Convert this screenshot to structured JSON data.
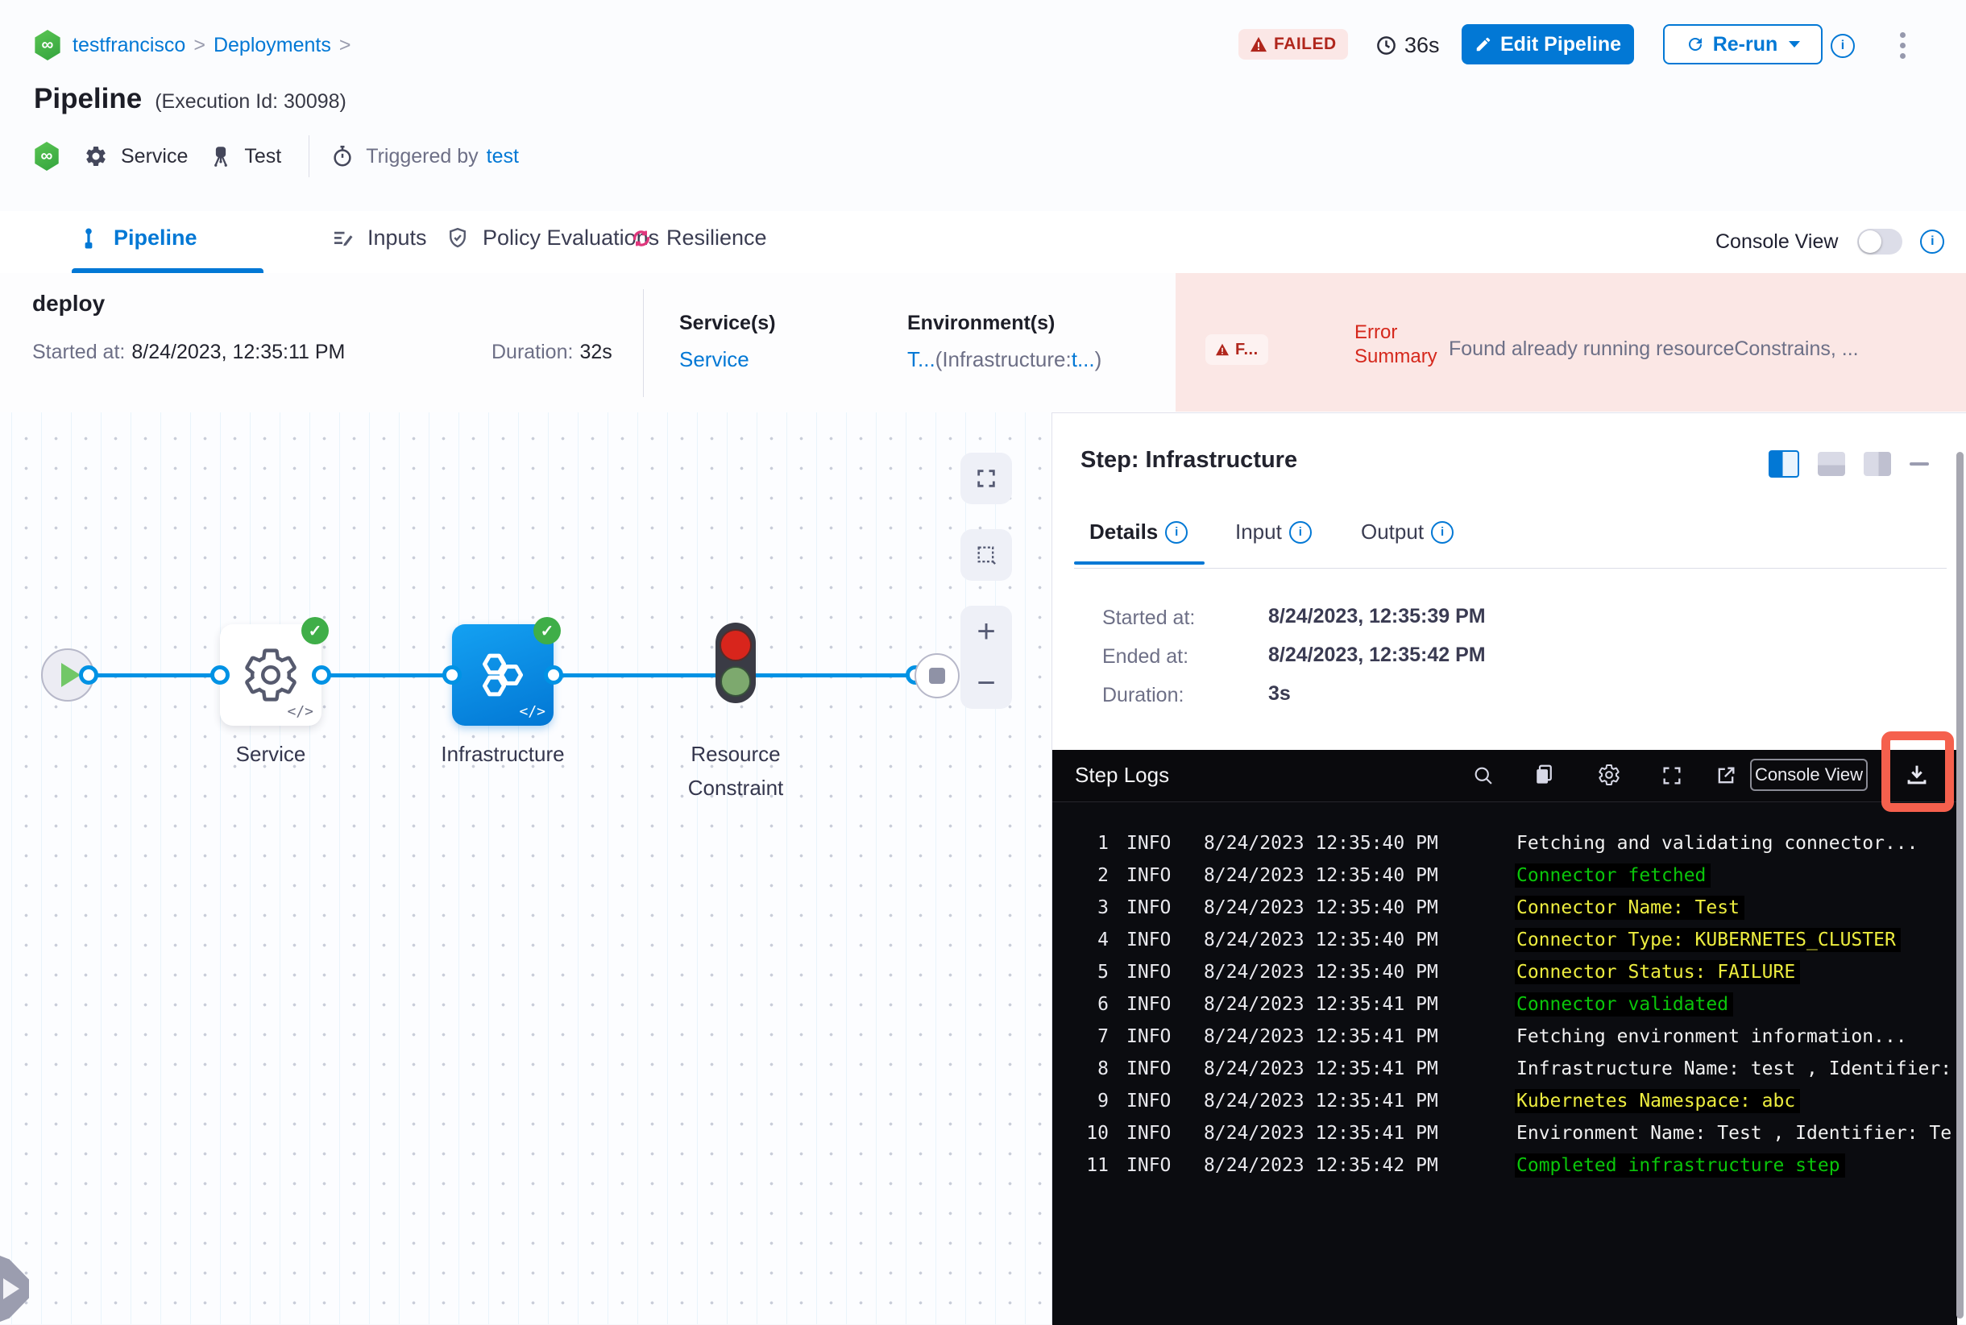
{
  "colors": {
    "accent": "#0278d5",
    "error_red": "#d5281c",
    "failed_red": "#b0261c",
    "log_green": "#0ac50a",
    "log_yellow": "#eded3f",
    "annotation": "#f5604d"
  },
  "breadcrumb": {
    "project": "testfrancisco",
    "section": "Deployments",
    "sep": ">"
  },
  "header": {
    "title": "Pipeline",
    "execution_id": "(Execution Id: 30098)",
    "status": "FAILED",
    "elapsed": "36s",
    "edit_button": "Edit Pipeline",
    "rerun_button": "Re-run",
    "service_label": "Service",
    "environment_label": "Test",
    "triggered_by_label": "Triggered by",
    "triggered_by_value": "test",
    "logo_glyph": "∞"
  },
  "tabs": {
    "pipeline": "Pipeline",
    "inputs": "Inputs",
    "policy": "Policy Evaluations",
    "resilience": "Resilience",
    "console_view_label": "Console View"
  },
  "stage": {
    "name": "deploy",
    "started_label": "Started at:",
    "started_value": "8/24/2023, 12:35:11 PM",
    "duration_label": "Duration:",
    "duration_value": "32s",
    "services_label": "Service(s)",
    "services_value": "Service",
    "environments_label": "Environment(s)",
    "env_link1": "T...",
    "env_mid": "(Infrastructure:",
    "env_link2": "t...",
    "env_close": ")",
    "failed_short": "F...",
    "error_label": "Error Summary",
    "error_text": "Found already running resourceConstrains, ..."
  },
  "graph": {
    "node_service": "Service",
    "node_infrastructure": "Infrastructure",
    "node_resource_line1": "Resource",
    "node_resource_line2": "Constraint",
    "code_glyph": "</>",
    "check_glyph": "✓"
  },
  "step_panel": {
    "title": "Step: Infrastructure",
    "tab_details": "Details",
    "tab_input": "Input",
    "tab_output": "Output",
    "started_label": "Started at:",
    "started_value": "8/24/2023, 12:35:39 PM",
    "ended_label": "Ended at:",
    "ended_value": "8/24/2023, 12:35:42 PM",
    "duration_label": "Duration:",
    "duration_value": "3s"
  },
  "logs": {
    "title": "Step Logs",
    "console_view_button": "Console View",
    "lines": [
      {
        "n": "1",
        "level": "INFO",
        "time": "8/24/2023 12:35:40 PM",
        "msg": "Fetching and validating connector...",
        "tone": "plain"
      },
      {
        "n": "2",
        "level": "INFO",
        "time": "8/24/2023 12:35:40 PM",
        "msg": "Connector fetched",
        "tone": "green"
      },
      {
        "n": "3",
        "level": "INFO",
        "time": "8/24/2023 12:35:40 PM",
        "msg": "Connector Name: Test",
        "tone": "yellow"
      },
      {
        "n": "4",
        "level": "INFO",
        "time": "8/24/2023 12:35:40 PM",
        "msg": "Connector Type: KUBERNETES_CLUSTER",
        "tone": "yellow"
      },
      {
        "n": "5",
        "level": "INFO",
        "time": "8/24/2023 12:35:40 PM",
        "msg": "Connector Status: FAILURE",
        "tone": "yellow"
      },
      {
        "n": "6",
        "level": "INFO",
        "time": "8/24/2023 12:35:41 PM",
        "msg": "Connector validated",
        "tone": "green"
      },
      {
        "n": "7",
        "level": "INFO",
        "time": "8/24/2023 12:35:41 PM",
        "msg": "Fetching environment information...",
        "tone": "plain"
      },
      {
        "n": "8",
        "level": "INFO",
        "time": "8/24/2023 12:35:41 PM",
        "msg": "Infrastructure Name: test , Identifier:",
        "tone": "plain"
      },
      {
        "n": "9",
        "level": "INFO",
        "time": "8/24/2023 12:35:41 PM",
        "msg": "Kubernetes Namespace: abc",
        "tone": "yellow"
      },
      {
        "n": "10",
        "level": "INFO",
        "time": "8/24/2023 12:35:41 PM",
        "msg": "Environment Name: Test , Identifier: Te",
        "tone": "plain"
      },
      {
        "n": "11",
        "level": "INFO",
        "time": "8/24/2023 12:35:42 PM",
        "msg": "Completed infrastructure step",
        "tone": "green"
      }
    ]
  }
}
